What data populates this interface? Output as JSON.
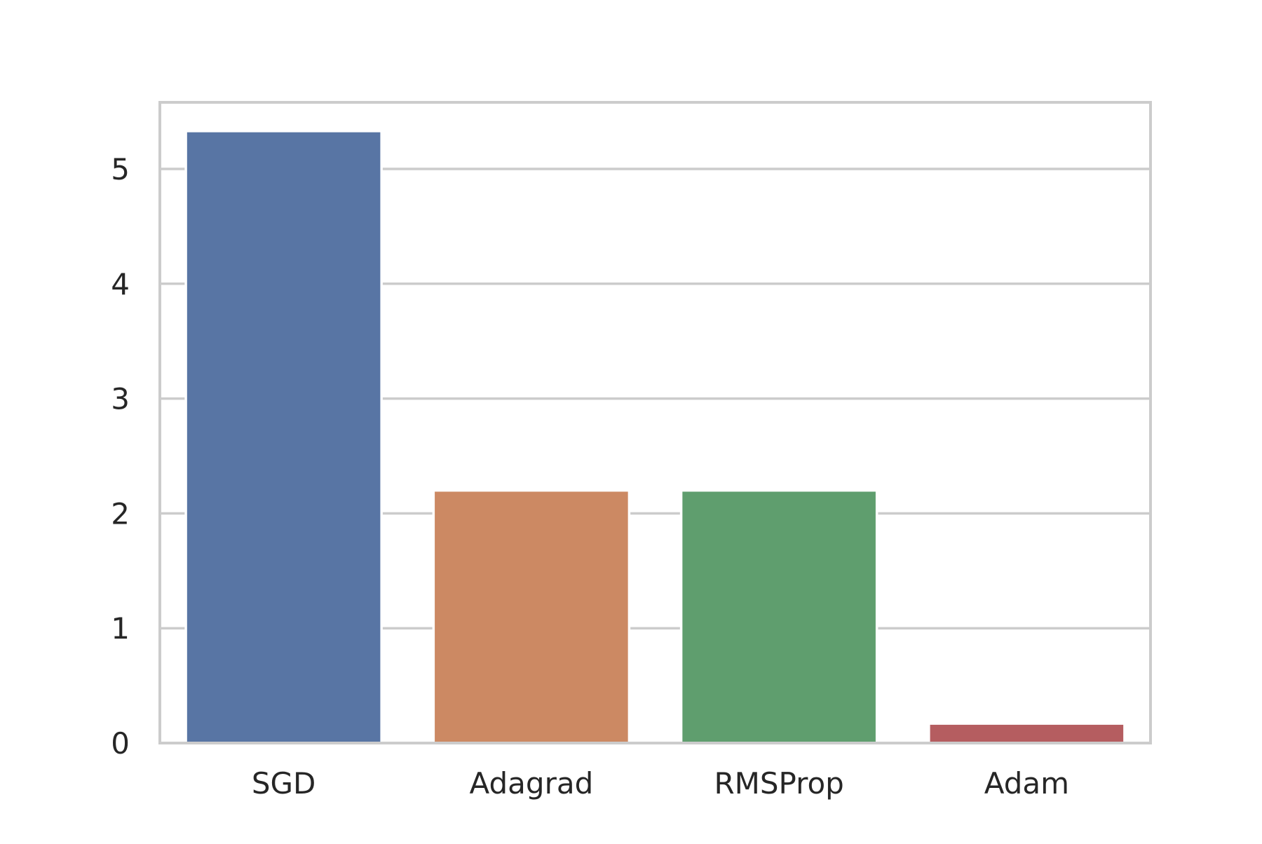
{
  "chart_data": {
    "type": "bar",
    "categories": [
      "SGD",
      "Adagrad",
      "RMSProp",
      "Adam"
    ],
    "values": [
      5.33,
      2.2,
      2.2,
      0.17
    ],
    "colors": [
      "#5875a4",
      "#cc8963",
      "#5f9e6e",
      "#b55d60"
    ],
    "title": "",
    "xlabel": "",
    "ylabel": "",
    "ylim": [
      0,
      5.58
    ],
    "yticks": [
      0,
      1,
      2,
      3,
      4,
      5
    ],
    "grid": "horizontal",
    "style": {
      "grid_color": "#cccccc",
      "spine_color": "#cccccc",
      "text_color": "#262626"
    }
  }
}
